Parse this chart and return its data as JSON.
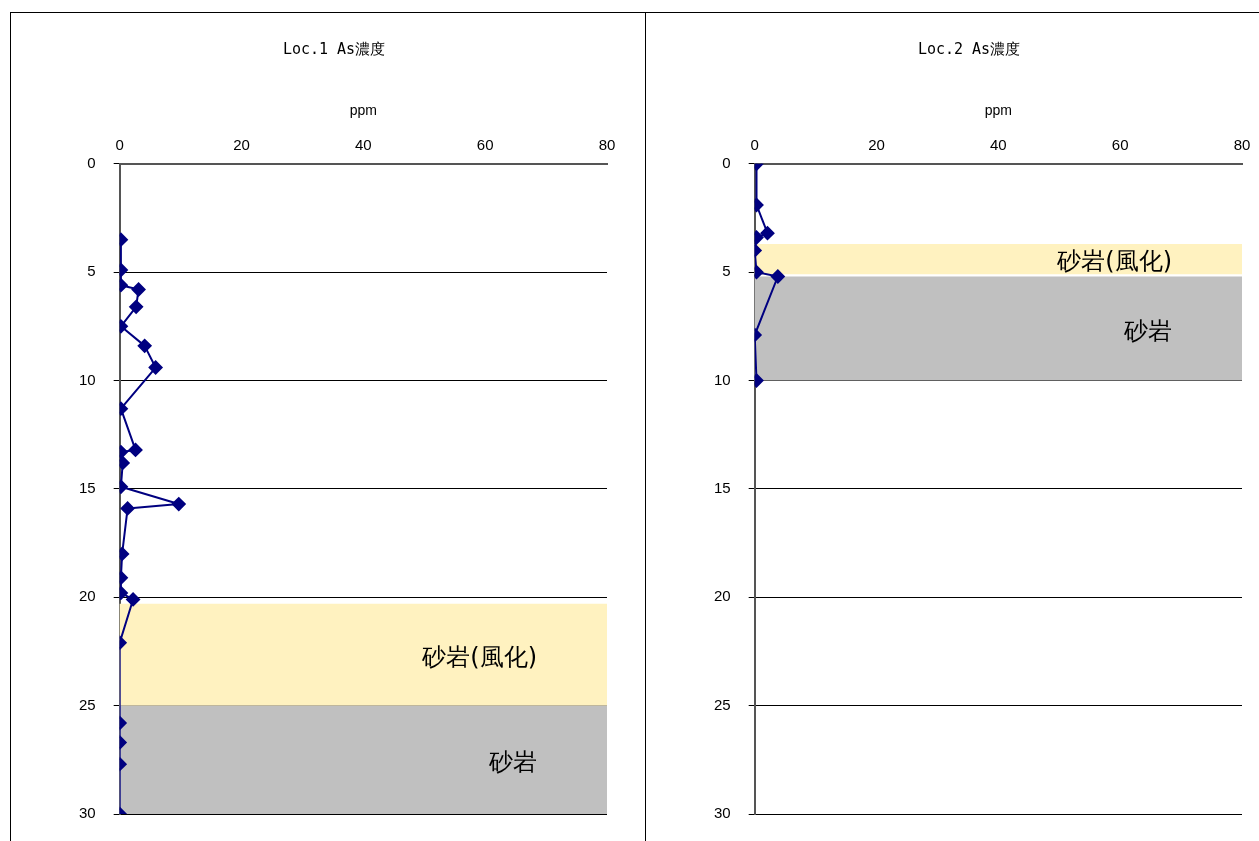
{
  "chart_data": [
    {
      "type": "line",
      "title": "Loc.1 As濃度",
      "xlabel": "ppm",
      "xlim": [
        0,
        80
      ],
      "xticks": [
        0,
        20,
        40,
        60,
        80
      ],
      "ylim": [
        30,
        0
      ],
      "yticks": [
        0,
        5,
        10,
        15,
        20,
        25,
        30
      ],
      "grid": "y",
      "legend": false,
      "marker": "diamond",
      "line_style": "solid",
      "series": [
        {
          "color": "#000080",
          "x": [
            0.2,
            0.2,
            0.2,
            3.1,
            2.7,
            0.2,
            4.1,
            5.9,
            0.2,
            2.6,
            0.2,
            0.5,
            0.2,
            9.7,
            1.3,
            0.4,
            0.2,
            0.2,
            2.2,
            0,
            0,
            0,
            0,
            0
          ],
          "values": [
            3.5,
            4.9,
            5.6,
            5.8,
            6.6,
            7.5,
            8.4,
            9.4,
            11.3,
            13.2,
            13.3,
            13.8,
            14.9,
            15.7,
            15.9,
            18,
            19.1,
            19.8,
            20.1,
            22.1,
            25.8,
            26.7,
            27.7,
            30
          ]
        }
      ],
      "bands": [
        {
          "axis": "y",
          "from": 20.3,
          "to": 25,
          "label": "砂岩(風化)",
          "color": "#fff2c0"
        },
        {
          "axis": "y",
          "from": 25,
          "to": 30,
          "label": "砂岩",
          "color": "#c0c0c0"
        }
      ]
    },
    {
      "type": "line",
      "title": "Loc.2 As濃度",
      "xlabel": "ppm",
      "xlim": [
        0,
        80
      ],
      "xticks": [
        0,
        20,
        40,
        60,
        80
      ],
      "ylim": [
        30,
        0
      ],
      "yticks": [
        0,
        5,
        10,
        15,
        20,
        25,
        30
      ],
      "grid": "y",
      "legend": false,
      "marker": "diamond",
      "line_style": "solid",
      "series": [
        {
          "color": "#000080",
          "x": [
            0.3,
            0.3,
            2.1,
            0.3,
            0,
            0.3,
            3.8,
            0,
            0.3
          ],
          "values": [
            0,
            1.9,
            3.2,
            3.4,
            4,
            5,
            5.2,
            7.9,
            10
          ]
        }
      ],
      "bands": [
        {
          "axis": "y",
          "from": 3.7,
          "to": 5.1,
          "label": "砂岩(風化)",
          "color": "#fff2c0"
        },
        {
          "axis": "y",
          "from": 5.2,
          "to": 10,
          "label": "砂岩",
          "color": "#c0c0c0"
        }
      ]
    }
  ]
}
